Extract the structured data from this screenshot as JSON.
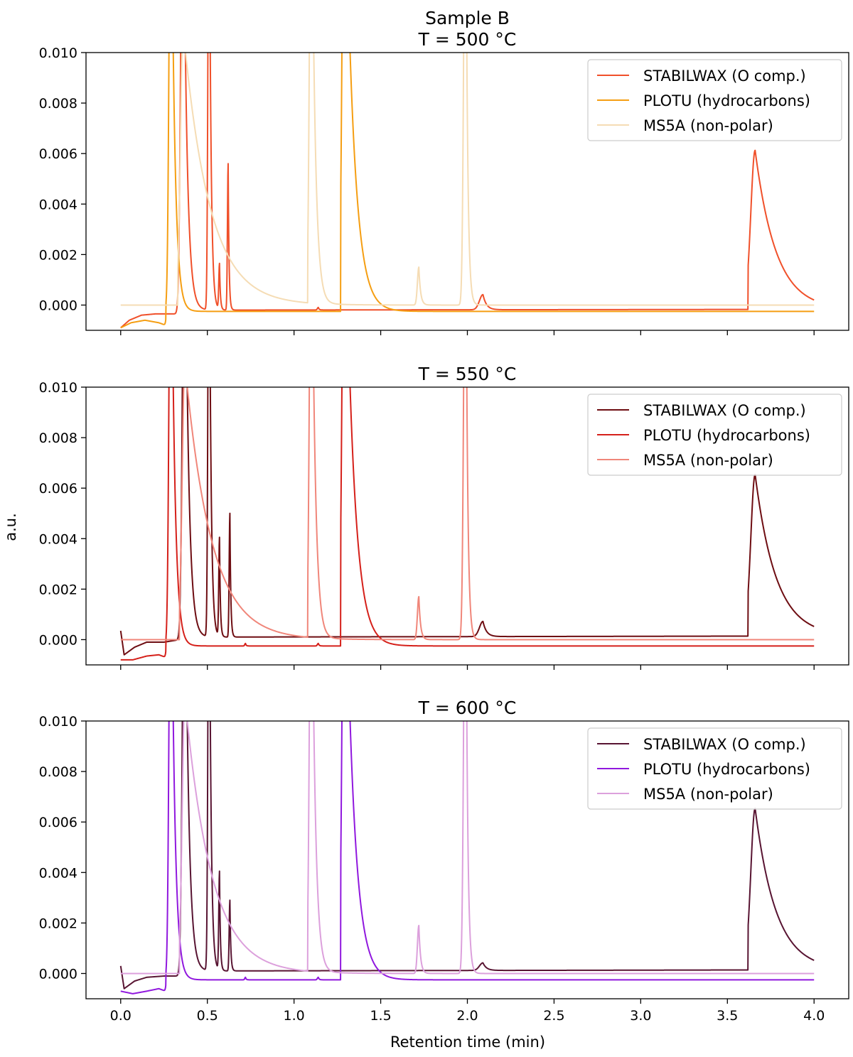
{
  "figure": {
    "ylabel": "a.u.",
    "xlabel": "Retention time (min)",
    "x_ticks": [
      "0.0",
      "0.5",
      "1.0",
      "1.5",
      "2.0",
      "2.5",
      "3.0",
      "3.5",
      "4.0"
    ],
    "y_ticks": [
      "0.000",
      "0.002",
      "0.004",
      "0.006",
      "0.008",
      "0.010"
    ]
  },
  "chart_data": [
    {
      "type": "line",
      "title": [
        "Sample B",
        "T = 500 °C"
      ],
      "xlim": [
        -0.2,
        4.2
      ],
      "ylim": [
        -0.001,
        0.01
      ],
      "legend": "top-right",
      "grid": false,
      "series": [
        {
          "name": "STABILWAX (O comp.)",
          "color": "#f0502a",
          "baseline": -0.0002,
          "early": [
            [
              0.0,
              -0.0009
            ],
            [
              0.05,
              -0.0006
            ],
            [
              0.12,
              -0.0004
            ],
            [
              0.2,
              -0.00035
            ],
            [
              0.27,
              -0.00035
            ],
            [
              0.33,
              -0.00035
            ]
          ],
          "peaks": [
            {
              "x": 0.36,
              "h": 0.02,
              "w": 0.012,
              "t": 0.02
            },
            {
              "x": 0.51,
              "h": 0.02,
              "w": 0.006,
              "t": 0.01
            },
            {
              "x": 0.57,
              "h": 0.0018,
              "w": 0.004,
              "t": 0.005
            },
            {
              "x": 0.62,
              "h": 0.0058,
              "w": 0.004,
              "t": 0.005
            },
            {
              "x": 1.14,
              "h": 0.0001,
              "w": 0.005,
              "t": 0.005
            },
            {
              "x": 2.09,
              "h": 0.0006,
              "w": 0.02,
              "t": 0.02
            },
            {
              "x": 3.66,
              "h": 0.0063,
              "w": 0.025,
              "t": 0.12,
              "start": 3.62
            }
          ],
          "end": [
            4.0,
            -0.0001
          ]
        },
        {
          "name": "PLOTU (hydrocarbons)",
          "color": "#f59e12",
          "baseline": -0.00025,
          "early": [
            [
              0.0,
              -0.0009
            ],
            [
              0.06,
              -0.0007
            ],
            [
              0.14,
              -0.0006
            ],
            [
              0.22,
              -0.0007
            ],
            [
              0.26,
              -0.0008
            ]
          ],
          "peaks": [
            {
              "x": 0.29,
              "h": 0.02,
              "w": 0.01,
              "t": 0.02
            },
            {
              "x": 1.29,
              "h": 0.02,
              "w": 0.012,
              "t": 0.05,
              "start": 1.27
            }
          ],
          "end": [
            4.0,
            -0.00025
          ]
        },
        {
          "name": "MS5A (non-polar)",
          "color": "#f5dcb4",
          "baseline": 0.0,
          "early": [],
          "peaks": [
            {
              "x": 0.36,
              "h": 0.011,
              "w": 0.015,
              "t": 0.15,
              "start": 0.33
            },
            {
              "x": 1.1,
              "h": 0.02,
              "w": 0.01,
              "t": 0.02,
              "start": 1.08
            },
            {
              "x": 1.72,
              "h": 0.0015,
              "w": 0.008,
              "t": 0.01
            },
            {
              "x": 1.99,
              "h": 0.02,
              "w": 0.01,
              "t": 0.01
            }
          ],
          "end": [
            4.0,
            0.0
          ]
        }
      ]
    },
    {
      "type": "line",
      "title": [
        "T = 550 °C"
      ],
      "xlim": [
        -0.2,
        4.2
      ],
      "ylim": [
        -0.001,
        0.01
      ],
      "legend": "top-right",
      "grid": false,
      "series": [
        {
          "name": "STABILWAX (O comp.)",
          "color": "#6e0d12",
          "baseline": 0.0001,
          "early": [
            [
              0.0,
              0.00035
            ],
            [
              0.02,
              -0.0006
            ],
            [
              0.08,
              -0.0003
            ],
            [
              0.15,
              -0.0001
            ],
            [
              0.25,
              -0.0001
            ],
            [
              0.34,
              0.0
            ]
          ],
          "peaks": [
            {
              "x": 0.37,
              "h": 0.02,
              "w": 0.012,
              "t": 0.02
            },
            {
              "x": 0.51,
              "h": 0.02,
              "w": 0.006,
              "t": 0.01
            },
            {
              "x": 0.57,
              "h": 0.0039,
              "w": 0.004,
              "t": 0.005
            },
            {
              "x": 0.63,
              "h": 0.0049,
              "w": 0.004,
              "t": 0.005
            },
            {
              "x": 2.09,
              "h": 0.0006,
              "w": 0.02,
              "t": 0.02
            },
            {
              "x": 3.66,
              "h": 0.0064,
              "w": 0.025,
              "t": 0.12,
              "start": 3.62
            }
          ],
          "end": [
            4.0,
            0.00025
          ]
        },
        {
          "name": "PLOTU (hydrocarbons)",
          "color": "#d5201a",
          "baseline": -0.00025,
          "early": [
            [
              0.0,
              -0.0008
            ],
            [
              0.07,
              -0.0008
            ],
            [
              0.15,
              -0.00065
            ],
            [
              0.22,
              -0.0006
            ],
            [
              0.26,
              -0.0007
            ]
          ],
          "peaks": [
            {
              "x": 0.29,
              "h": 0.02,
              "w": 0.01,
              "t": 0.02
            },
            {
              "x": 0.72,
              "h": 0.0001,
              "w": 0.004,
              "t": 0.004
            },
            {
              "x": 1.14,
              "h": 0.0001,
              "w": 0.005,
              "t": 0.005
            },
            {
              "x": 1.29,
              "h": 0.02,
              "w": 0.012,
              "t": 0.05,
              "start": 1.27
            }
          ],
          "end": [
            4.0,
            -0.00025
          ]
        },
        {
          "name": "MS5A (non-polar)",
          "color": "#f0867a",
          "baseline": 0.0,
          "early": [],
          "peaks": [
            {
              "x": 0.37,
              "h": 0.011,
              "w": 0.015,
              "t": 0.15,
              "start": 0.34
            },
            {
              "x": 1.1,
              "h": 0.02,
              "w": 0.01,
              "t": 0.02,
              "start": 1.08
            },
            {
              "x": 1.72,
              "h": 0.0017,
              "w": 0.008,
              "t": 0.01
            },
            {
              "x": 1.99,
              "h": 0.02,
              "w": 0.01,
              "t": 0.01
            }
          ],
          "end": [
            4.0,
            0.0
          ]
        }
      ]
    },
    {
      "type": "line",
      "title": [
        "T = 600 °C"
      ],
      "xlim": [
        -0.2,
        4.2
      ],
      "ylim": [
        -0.001,
        0.01
      ],
      "legend": "top-right",
      "grid": false,
      "series": [
        {
          "name": "STABILWAX (O comp.)",
          "color": "#581432",
          "baseline": 0.0001,
          "early": [
            [
              0.0,
              0.0003
            ],
            [
              0.02,
              -0.0006
            ],
            [
              0.08,
              -0.0003
            ],
            [
              0.15,
              -0.00015
            ],
            [
              0.25,
              -0.0001
            ],
            [
              0.34,
              -0.0001
            ]
          ],
          "peaks": [
            {
              "x": 0.37,
              "h": 0.02,
              "w": 0.012,
              "t": 0.02
            },
            {
              "x": 0.51,
              "h": 0.02,
              "w": 0.006,
              "t": 0.01
            },
            {
              "x": 0.57,
              "h": 0.0039,
              "w": 0.004,
              "t": 0.005
            },
            {
              "x": 0.63,
              "h": 0.0028,
              "w": 0.004,
              "t": 0.005
            },
            {
              "x": 2.09,
              "h": 0.0003,
              "w": 0.02,
              "t": 0.02
            },
            {
              "x": 3.66,
              "h": 0.0064,
              "w": 0.025,
              "t": 0.12,
              "start": 3.62
            }
          ],
          "end": [
            4.0,
            0.00025
          ]
        },
        {
          "name": "PLOTU (hydrocarbons)",
          "color": "#9018de",
          "baseline": -0.00025,
          "early": [
            [
              0.0,
              -0.0007
            ],
            [
              0.07,
              -0.0008
            ],
            [
              0.15,
              -0.0007
            ],
            [
              0.22,
              -0.0006
            ],
            [
              0.26,
              -0.0007
            ]
          ],
          "peaks": [
            {
              "x": 0.29,
              "h": 0.02,
              "w": 0.01,
              "t": 0.02
            },
            {
              "x": 0.72,
              "h": 0.0001,
              "w": 0.004,
              "t": 0.004
            },
            {
              "x": 1.14,
              "h": 0.0001,
              "w": 0.005,
              "t": 0.005
            },
            {
              "x": 1.29,
              "h": 0.02,
              "w": 0.012,
              "t": 0.05,
              "start": 1.27
            }
          ],
          "end": [
            4.0,
            -0.00025
          ]
        },
        {
          "name": "MS5A (non-polar)",
          "color": "#dca0dc",
          "baseline": 0.0,
          "early": [],
          "peaks": [
            {
              "x": 0.37,
              "h": 0.011,
              "w": 0.015,
              "t": 0.15,
              "start": 0.34
            },
            {
              "x": 1.1,
              "h": 0.02,
              "w": 0.01,
              "t": 0.02,
              "start": 1.08
            },
            {
              "x": 1.72,
              "h": 0.0019,
              "w": 0.008,
              "t": 0.01
            },
            {
              "x": 1.99,
              "h": 0.02,
              "w": 0.01,
              "t": 0.01
            }
          ],
          "end": [
            4.0,
            0.0
          ]
        }
      ]
    }
  ]
}
